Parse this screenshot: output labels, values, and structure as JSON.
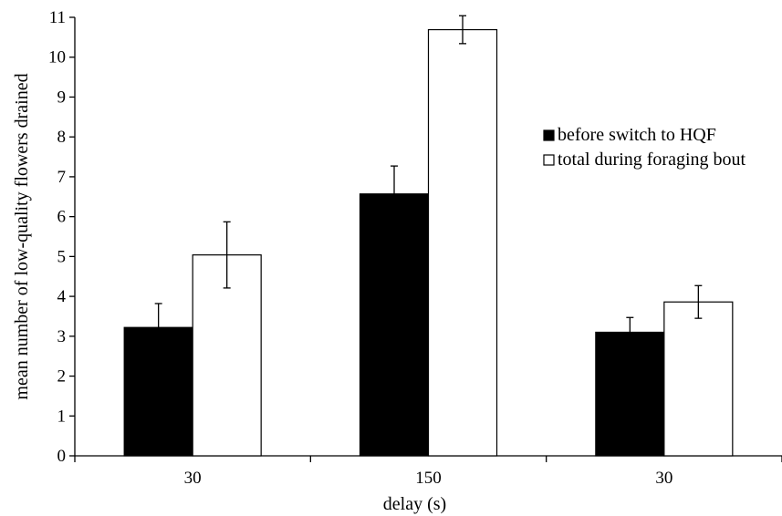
{
  "chart_data": {
    "type": "bar",
    "categories": [
      "30",
      "150",
      "30"
    ],
    "series": [
      {
        "name": "before switch to HQF",
        "values": [
          3.22,
          6.57,
          3.1
        ],
        "errors": [
          0.6,
          0.7,
          0.37
        ],
        "color": "#000000"
      },
      {
        "name": "total during foraging bout",
        "values": [
          5.04,
          10.69,
          3.86
        ],
        "errors": [
          0.83,
          0.35,
          0.41
        ],
        "color": "#ffffff"
      }
    ],
    "xlabel": "delay (s)",
    "ylabel": "mean number of low-quality flowers drained",
    "ylim": [
      0,
      11
    ],
    "yticks": [
      "0",
      "1",
      "2",
      "3",
      "4",
      "5",
      "6",
      "7",
      "8",
      "9",
      "10",
      "11"
    ],
    "legend_position": "right",
    "grid": false
  }
}
